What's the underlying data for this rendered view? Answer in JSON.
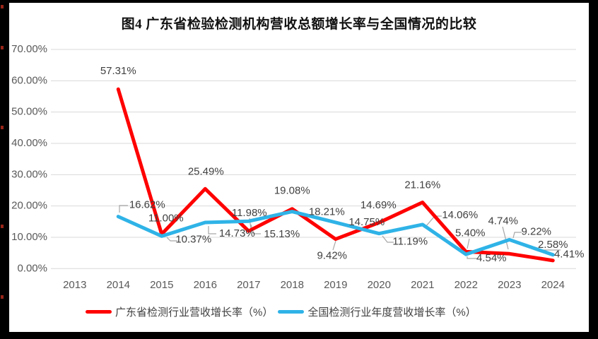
{
  "chart_data": {
    "type": "line",
    "title": "图4  广东省检验检测机构营收总额增长率与全国情况的比较",
    "categories": [
      "2013",
      "2014",
      "2015",
      "2016",
      "2017",
      "2018",
      "2019",
      "2020",
      "2021",
      "2022",
      "2023",
      "2024"
    ],
    "y_tick_labels": [
      "0.00%",
      "10.00%",
      "20.00%",
      "30.00%",
      "40.00%",
      "50.00%",
      "60.00%",
      "70.00%"
    ],
    "ylim": [
      0,
      70
    ],
    "grid": true,
    "legend_position": "bottom",
    "series": [
      {
        "key": "guangdong",
        "name": "广东省检测行业营收增长率（%）",
        "color": "#FF0000",
        "points": [
          {
            "x": "2014",
            "y": 57.31,
            "label": "57.31%"
          },
          {
            "x": "2015",
            "y": 11.0,
            "label": "11.00%"
          },
          {
            "x": "2016",
            "y": 25.49,
            "label": "25.49%"
          },
          {
            "x": "2017",
            "y": 11.98,
            "label": "11.98%"
          },
          {
            "x": "2018",
            "y": 19.08,
            "label": "19.08%"
          },
          {
            "x": "2019",
            "y": 9.42,
            "label": "9.42%"
          },
          {
            "x": "2020",
            "y": 14.69,
            "label": "14.69%"
          },
          {
            "x": "2021",
            "y": 21.16,
            "label": "21.16%"
          },
          {
            "x": "2022",
            "y": 5.4,
            "label": "5.40%"
          },
          {
            "x": "2023",
            "y": 4.74,
            "label": "4.74%"
          },
          {
            "x": "2024",
            "y": 2.58,
            "label": "2.58%"
          }
        ]
      },
      {
        "key": "national",
        "name": "全国检测行业年度营收增长率（%）",
        "color": "#2FB3E7",
        "points": [
          {
            "x": "2014",
            "y": 16.62,
            "label": "16.62%"
          },
          {
            "x": "2015",
            "y": 10.37,
            "label": "10.37%"
          },
          {
            "x": "2016",
            "y": 14.73,
            "label": "14.73%"
          },
          {
            "x": "2017",
            "y": 15.13,
            "label": "15.13%"
          },
          {
            "x": "2018",
            "y": 18.21,
            "label": "18.21%"
          },
          {
            "x": "2019",
            "y": 14.75,
            "label": "14.75%"
          },
          {
            "x": "2020",
            "y": 11.19,
            "label": "11.19%"
          },
          {
            "x": "2021",
            "y": 14.06,
            "label": "14.06%"
          },
          {
            "x": "2022",
            "y": 4.54,
            "label": "4.54%"
          },
          {
            "x": "2023",
            "y": 9.22,
            "label": "9.22%"
          },
          {
            "x": "2024",
            "y": 4.41,
            "label": "4.41%"
          }
        ]
      }
    ]
  },
  "colors": {
    "background": "#FFFFFF",
    "frame": "#000000",
    "grid": "#D9D9D9",
    "axis_text": "#595959",
    "data_label_text": "#404040",
    "leader_line": "#A6A6A6"
  }
}
